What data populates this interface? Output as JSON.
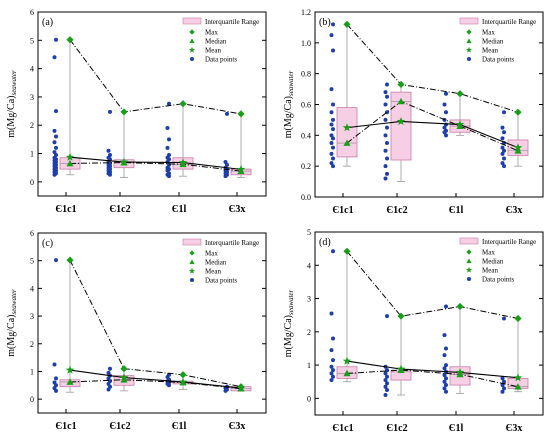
{
  "legend": {
    "iqr": "Interquartile Range",
    "max": "Max",
    "median": "Median",
    "mean": "Mean",
    "points": "Data points"
  },
  "colors": {
    "box_fill": "#f7cfe4",
    "box_stroke": "#c97aa8",
    "max_marker": "#1a9e1a",
    "median_marker": "#1a9e1a",
    "mean_marker": "#1a9e1a",
    "data_point": "#1f3fa8",
    "mean_line": "#000000",
    "whisker": "#9a9a9a"
  },
  "chart_data": [
    {
      "type": "box",
      "panel_label": "(a)",
      "ylabel_main": "m(Mg/Ca)",
      "ylabel_sub": "seawater",
      "categories": [
        "Є1c1",
        "Є1c2",
        "Є1l",
        "Є3x"
      ],
      "ylim": [
        -0.5,
        6
      ],
      "yticks": [
        0,
        1,
        2,
        3,
        4,
        5,
        6
      ],
      "max": [
        5.02,
        2.47,
        2.76,
        2.4
      ],
      "median": [
        0.65,
        0.68,
        0.62,
        0.38
      ],
      "mean": [
        0.87,
        0.7,
        0.68,
        0.44
      ],
      "q1": [
        0.45,
        0.5,
        0.45,
        0.25
      ],
      "q3": [
        0.85,
        0.78,
        0.85,
        0.45
      ],
      "whisker_low": [
        0.25,
        0.15,
        0.2,
        0.15
      ],
      "points": [
        [
          5.02,
          4.4,
          2.5,
          1.8,
          1.6,
          1.4,
          1.2,
          1.05,
          0.95,
          0.85,
          0.8,
          0.75,
          0.7,
          0.65,
          0.6,
          0.55,
          0.5,
          0.45,
          0.4,
          0.35,
          0.3,
          0.25
        ],
        [
          2.47,
          1.1,
          0.95,
          0.85,
          0.8,
          0.7,
          0.65,
          0.6,
          0.55,
          0.5,
          0.45,
          0.4,
          0.35,
          0.3,
          0.25
        ],
        [
          2.76,
          1.9,
          1.5,
          1.2,
          0.95,
          0.85,
          0.8,
          0.7,
          0.6,
          0.5,
          0.45,
          0.4,
          0.3,
          0.25,
          0.2
        ],
        [
          2.4,
          0.7,
          0.6,
          0.5,
          0.45,
          0.4,
          0.35,
          0.3,
          0.25,
          0.2
        ]
      ]
    },
    {
      "type": "box",
      "panel_label": "(b)",
      "ylabel_main": "m(Mg/Ca)",
      "ylabel_sub": "seawater",
      "categories": [
        "Є1c1",
        "Є1c2",
        "Є1l",
        "Є3x"
      ],
      "ylim": [
        0,
        1.2
      ],
      "yticks": [
        0.0,
        0.2,
        0.4,
        0.6,
        0.8,
        1.0,
        1.2
      ],
      "max": [
        1.12,
        0.73,
        0.67,
        0.55
      ],
      "median": [
        0.35,
        0.62,
        0.46,
        0.3
      ],
      "mean": [
        0.45,
        0.49,
        0.47,
        0.32
      ],
      "q1": [
        0.26,
        0.24,
        0.42,
        0.27
      ],
      "q3": [
        0.58,
        0.68,
        0.5,
        0.37
      ],
      "whisker_low": [
        0.2,
        0.1,
        0.4,
        0.2
      ],
      "points": [
        [
          1.12,
          1.05,
          0.95,
          0.7,
          0.6,
          0.55,
          0.5,
          0.47,
          0.44,
          0.4,
          0.38,
          0.35,
          0.32,
          0.28,
          0.25,
          0.22,
          0.2
        ],
        [
          0.73,
          0.68,
          0.65,
          0.6,
          0.55,
          0.5,
          0.45,
          0.4,
          0.35,
          0.3,
          0.25,
          0.2,
          0.15,
          0.12
        ],
        [
          0.67,
          0.6,
          0.55,
          0.5,
          0.47,
          0.45,
          0.43,
          0.42,
          0.4
        ],
        [
          0.55,
          0.45,
          0.42,
          0.38,
          0.35,
          0.32,
          0.3,
          0.28,
          0.25,
          0.22,
          0.2
        ]
      ]
    },
    {
      "type": "box",
      "panel_label": "(c)",
      "ylabel_main": "m(Mg/Ca)",
      "ylabel_sub": "seawater",
      "categories": [
        "Є1c1",
        "Є1c2",
        "Є1l",
        "Є3x"
      ],
      "ylim": [
        -0.5,
        6
      ],
      "yticks": [
        0,
        1,
        2,
        3,
        4,
        5,
        6
      ],
      "max": [
        5.02,
        1.1,
        0.88,
        0.45
      ],
      "median": [
        0.62,
        0.7,
        0.6,
        0.38
      ],
      "mean": [
        1.05,
        0.78,
        0.62,
        0.4
      ],
      "q1": [
        0.45,
        0.5,
        0.55,
        0.3
      ],
      "q3": [
        0.7,
        0.85,
        0.65,
        0.45
      ],
      "whisker_low": [
        0.25,
        0.3,
        0.35,
        0.3
      ],
      "points": [
        [
          5.02,
          1.25,
          0.75,
          0.6,
          0.5,
          0.4,
          0.3
        ],
        [
          1.1,
          0.95,
          0.85,
          0.75,
          0.65,
          0.55,
          0.45,
          0.35
        ],
        [
          0.88,
          0.8,
          0.7,
          0.65,
          0.6,
          0.55,
          0.5
        ],
        [
          0.45,
          0.4,
          0.35,
          0.3
        ]
      ]
    },
    {
      "type": "box",
      "panel_label": "(d)",
      "ylabel_main": "m(Mg/Ca)",
      "ylabel_sub": "seawater",
      "categories": [
        "Є1c1",
        "Є1c2",
        "Є1l",
        "Є3x"
      ],
      "ylim": [
        -0.5,
        5
      ],
      "yticks": [
        0,
        1,
        2,
        3,
        4,
        5
      ],
      "max": [
        4.42,
        2.47,
        2.76,
        2.4
      ],
      "median": [
        0.75,
        0.85,
        0.72,
        0.35
      ],
      "mean": [
        1.12,
        0.88,
        0.78,
        0.62
      ],
      "q1": [
        0.6,
        0.55,
        0.4,
        0.3
      ],
      "q3": [
        0.95,
        0.8,
        0.95,
        0.6
      ],
      "whisker_low": [
        0.5,
        0.1,
        0.15,
        0.2
      ],
      "points": [
        [
          4.42,
          2.55,
          1.8,
          1.45,
          1.15,
          0.95,
          0.85,
          0.75,
          0.65,
          0.55
        ],
        [
          2.47,
          0.95,
          0.85,
          0.75,
          0.65,
          0.55,
          0.45,
          0.35,
          0.25,
          0.1
        ],
        [
          2.76,
          1.9,
          1.5,
          1.3,
          1.0,
          0.9,
          0.8,
          0.7,
          0.6,
          0.5,
          0.4,
          0.3,
          0.2
        ],
        [
          2.4,
          0.6,
          0.5,
          0.4,
          0.3,
          0.2
        ]
      ]
    }
  ]
}
